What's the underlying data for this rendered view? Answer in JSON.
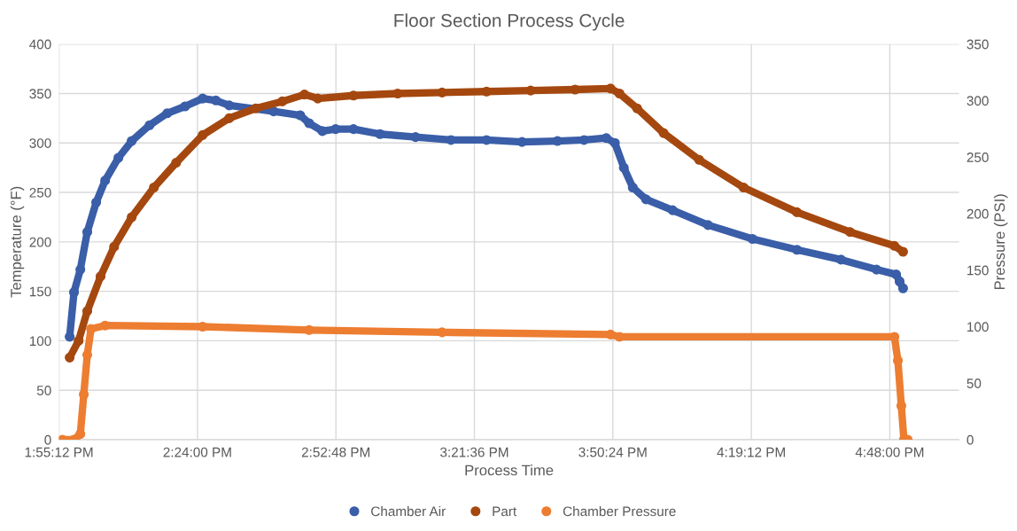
{
  "chart_data": {
    "type": "line",
    "title": "Floor Section Process Cycle",
    "xlabel": "Process Time",
    "ylabel": "Temperature (°F)",
    "y2label": "Pressure (PSI)",
    "xlim": [
      13.92,
      17.04
    ],
    "xticks": [
      {
        "value": 13.92,
        "label": "1:55:12 PM"
      },
      {
        "value": 14.4,
        "label": "2:24:00 PM"
      },
      {
        "value": 14.88,
        "label": "2:52:48 PM"
      },
      {
        "value": 15.36,
        "label": "3:21:36 PM"
      },
      {
        "value": 15.84,
        "label": "3:50:24 PM"
      },
      {
        "value": 16.32,
        "label": "4:19:12 PM"
      },
      {
        "value": 16.8,
        "label": "4:48:00 PM"
      }
    ],
    "ylim": [
      0,
      400
    ],
    "yticks": [
      0,
      50,
      100,
      150,
      200,
      250,
      300,
      350,
      400
    ],
    "y2lim": [
      0,
      350
    ],
    "y2ticks": [
      0,
      50,
      100,
      150,
      200,
      250,
      300,
      350
    ],
    "grid": true,
    "legend": "bottom",
    "marker": "circle",
    "series": [
      {
        "name": "Chamber Air",
        "color": "#3a5ea8",
        "x": [
          13.957,
          13.972,
          13.994,
          14.018,
          14.049,
          14.08,
          14.126,
          14.172,
          14.234,
          14.295,
          14.357,
          14.418,
          14.464,
          14.51,
          14.664,
          14.756,
          14.787,
          14.833,
          14.879,
          14.941,
          15.033,
          15.156,
          15.279,
          15.402,
          15.525,
          15.648,
          15.74,
          15.817,
          15.847,
          15.878,
          15.909,
          15.955,
          16.047,
          16.17,
          16.324,
          16.478,
          16.631,
          16.754,
          16.822,
          16.834,
          16.846
        ],
        "values": [
          104,
          149,
          172,
          210,
          240,
          262,
          285,
          302,
          318,
          330,
          337,
          345,
          343,
          338,
          332,
          328,
          320,
          312,
          314,
          314,
          309,
          306,
          303,
          303,
          301,
          302,
          303,
          305,
          300,
          275,
          255,
          243,
          232,
          217,
          203,
          192,
          182,
          172,
          167,
          160,
          153
        ]
      },
      {
        "name": "Part",
        "color": "#a5480f",
        "x": [
          13.957,
          13.988,
          14.018,
          14.064,
          14.111,
          14.172,
          14.249,
          14.326,
          14.418,
          14.51,
          14.602,
          14.694,
          14.771,
          14.817,
          14.941,
          15.094,
          15.248,
          15.402,
          15.555,
          15.709,
          15.832,
          15.863,
          15.924,
          16.016,
          16.139,
          16.293,
          16.478,
          16.662,
          16.816,
          16.846
        ],
        "values": [
          83,
          100,
          130,
          165,
          195,
          225,
          255,
          280,
          308,
          325,
          335,
          342,
          349,
          345,
          348,
          350,
          351,
          352,
          353,
          354,
          355,
          350,
          335,
          310,
          283,
          255,
          230,
          210,
          196,
          190
        ]
      },
      {
        "name": "Chamber Pressure",
        "color": "#ed7d31",
        "axis": "y2",
        "x": [
          13.932,
          13.972,
          13.994,
          14.006,
          14.018,
          14.031,
          14.08,
          14.418,
          14.787,
          15.248,
          15.832,
          15.863,
          16.816,
          16.828,
          16.84,
          16.849,
          16.862
        ],
        "values": [
          0,
          0,
          5,
          40,
          75,
          98,
          101,
          100,
          97,
          95,
          93,
          91,
          91,
          70,
          30,
          0,
          0
        ]
      }
    ]
  }
}
